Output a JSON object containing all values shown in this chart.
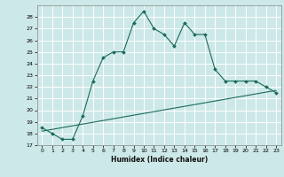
{
  "title": "",
  "xlabel": "Humidex (Indice chaleur)",
  "ylabel": "",
  "bg_color": "#cde8e8",
  "grid_color": "#ffffff",
  "line_color": "#1a6b5a",
  "xlim": [
    -0.5,
    23.5
  ],
  "ylim": [
    17,
    29
  ],
  "yticks": [
    17,
    18,
    19,
    20,
    21,
    22,
    23,
    24,
    25,
    26,
    27,
    28
  ],
  "xticks": [
    0,
    1,
    2,
    3,
    4,
    5,
    6,
    7,
    8,
    9,
    10,
    11,
    12,
    13,
    14,
    15,
    16,
    17,
    18,
    19,
    20,
    21,
    22,
    23
  ],
  "main_x": [
    0,
    1,
    2,
    3,
    4,
    5,
    6,
    7,
    8,
    9,
    10,
    11,
    12,
    13,
    14,
    15,
    16,
    17,
    18,
    19,
    20,
    21,
    22,
    23
  ],
  "main_y": [
    18.5,
    18.0,
    17.5,
    17.5,
    19.5,
    22.5,
    24.5,
    25.0,
    25.0,
    27.5,
    28.5,
    27.0,
    26.5,
    25.5,
    27.5,
    26.5,
    26.5,
    23.5,
    22.5,
    22.5,
    22.5,
    22.5,
    22.0,
    21.5
  ],
  "trend_x": [
    0,
    23
  ],
  "trend_y": [
    18.2,
    21.7
  ]
}
